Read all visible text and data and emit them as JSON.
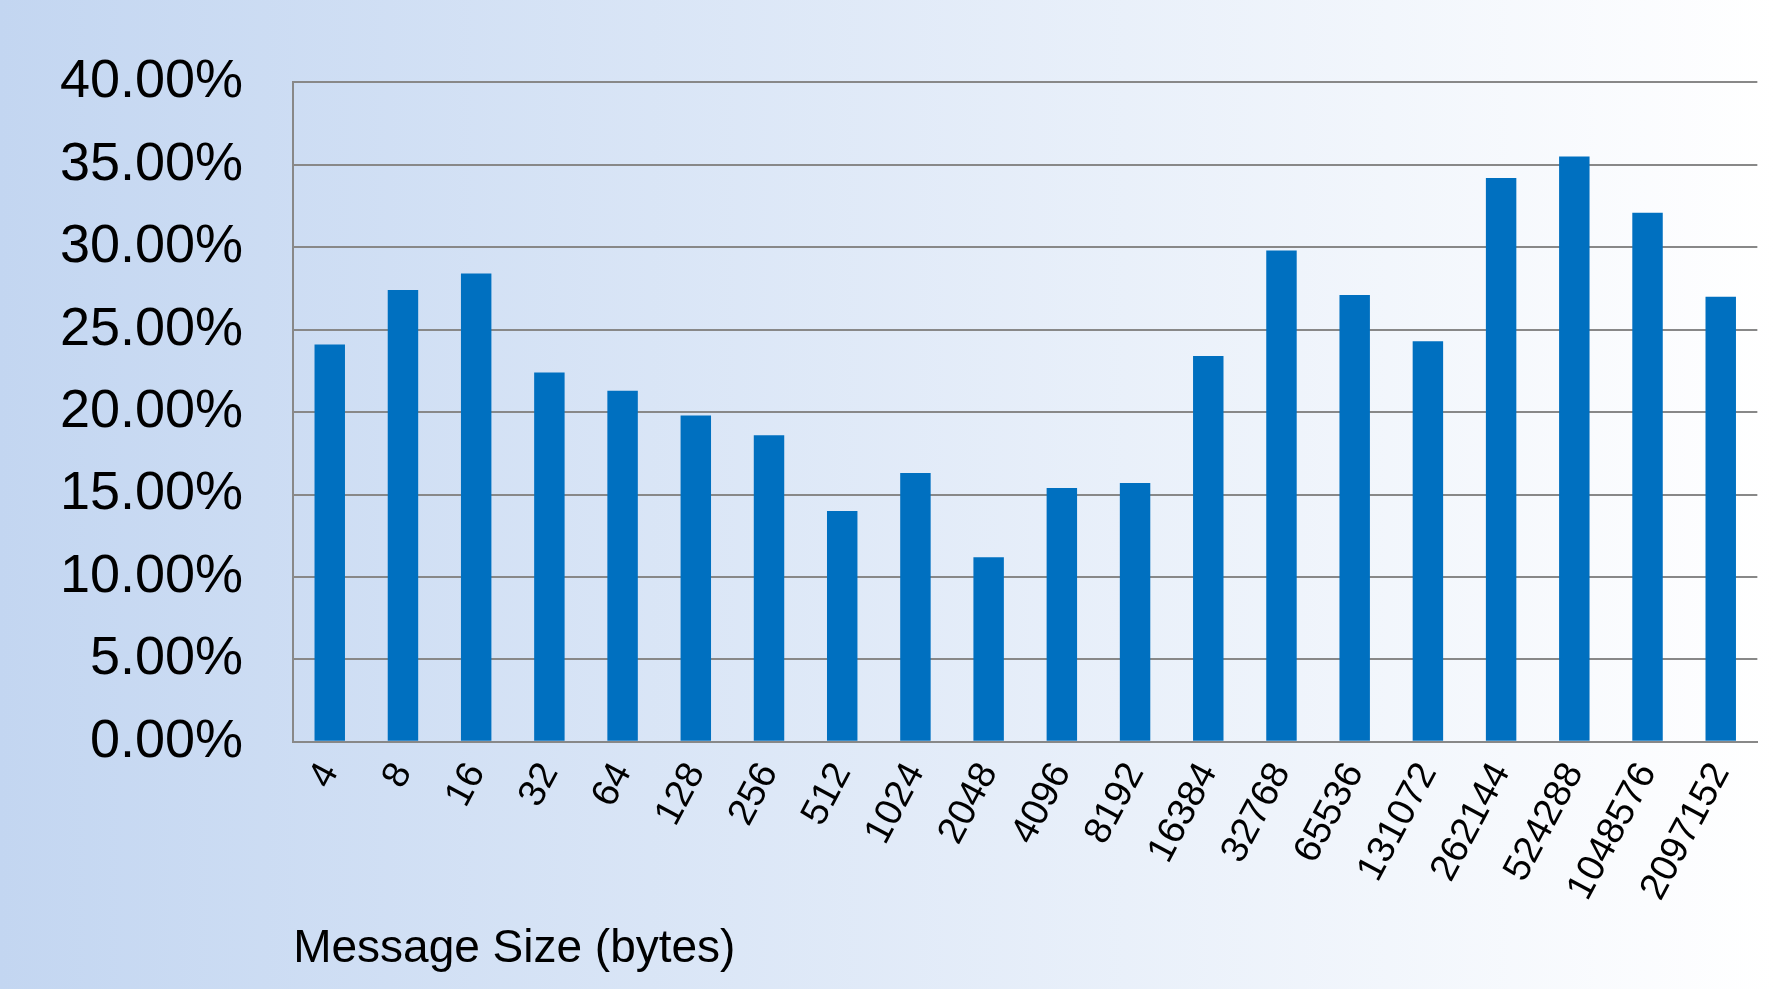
{
  "chart_data": {
    "type": "bar",
    "xlabel": "Message Size (bytes)",
    "categories": [
      "4",
      "8",
      "16",
      "32",
      "64",
      "128",
      "256",
      "512",
      "1024",
      "2048",
      "4096",
      "8192",
      "16384",
      "32768",
      "65536",
      "131072",
      "262144",
      "524288",
      "1048576",
      "2097152"
    ],
    "values": [
      24.1,
      27.4,
      28.4,
      22.4,
      21.3,
      19.8,
      18.6,
      14.0,
      16.3,
      11.2,
      15.4,
      15.7,
      23.4,
      29.8,
      27.1,
      24.3,
      34.2,
      35.5,
      32.1,
      27.0
    ],
    "color": "#0070c0",
    "ylim": [
      0,
      40
    ],
    "yticks": [
      {
        "value": 0,
        "label": "0.00%"
      },
      {
        "value": 5,
        "label": "5.00%"
      },
      {
        "value": 10,
        "label": "10.00%"
      },
      {
        "value": 15,
        "label": "15.00%"
      },
      {
        "value": 20,
        "label": "20.00%"
      },
      {
        "value": 25,
        "label": "25.00%"
      },
      {
        "value": 30,
        "label": "30.00%"
      },
      {
        "value": 35,
        "label": "35.00%"
      },
      {
        "value": 40,
        "label": "40.00%"
      }
    ],
    "grid": "y",
    "legend": false
  }
}
